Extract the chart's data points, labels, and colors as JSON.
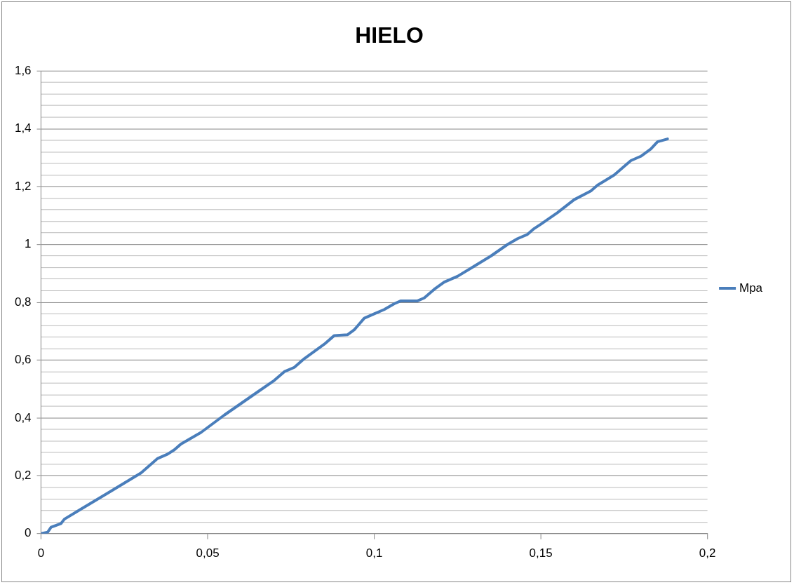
{
  "chart_data": {
    "type": "line",
    "title": "HIELO",
    "x": [
      0,
      0.002,
      0.003,
      0.006,
      0.007,
      0.012,
      0.02,
      0.03,
      0.035,
      0.038,
      0.04,
      0.042,
      0.048,
      0.055,
      0.06,
      0.065,
      0.07,
      0.073,
      0.076,
      0.079,
      0.085,
      0.088,
      0.092,
      0.094,
      0.097,
      0.1,
      0.103,
      0.106,
      0.108,
      0.113,
      0.115,
      0.118,
      0.121,
      0.125,
      0.13,
      0.135,
      0.14,
      0.143,
      0.146,
      0.148,
      0.15,
      0.155,
      0.16,
      0.165,
      0.167,
      0.172,
      0.177,
      0.18,
      0.183,
      0.185,
      0.188
    ],
    "series": [
      {
        "name": "Mpa",
        "color": "#4a7ebb",
        "values": [
          0,
          0.005,
          0.022,
          0.035,
          0.05,
          0.085,
          0.14,
          0.21,
          0.26,
          0.275,
          0.29,
          0.31,
          0.35,
          0.41,
          0.45,
          0.49,
          0.53,
          0.56,
          0.575,
          0.605,
          0.655,
          0.685,
          0.688,
          0.705,
          0.745,
          0.76,
          0.775,
          0.795,
          0.805,
          0.805,
          0.815,
          0.845,
          0.87,
          0.89,
          0.925,
          0.96,
          1.0,
          1.02,
          1.035,
          1.055,
          1.07,
          1.11,
          1.155,
          1.185,
          1.205,
          1.24,
          1.29,
          1.305,
          1.33,
          1.355,
          1.365
        ]
      }
    ],
    "xlim": [
      0,
      0.2
    ],
    "xticks": [
      0,
      {
        "value": 0.05,
        "label": "0,05"
      },
      {
        "value": 0.1,
        "label": "0,1"
      },
      {
        "value": 0.15,
        "label": "0,15"
      },
      {
        "value": 0.2,
        "label": "0,2"
      }
    ],
    "ylim": [
      0,
      1.6
    ],
    "yticks": [
      0,
      {
        "value": 0.04,
        "label": null
      },
      {
        "value": 0.08,
        "label": null
      },
      {
        "value": 0.12,
        "label": null
      },
      {
        "value": 0.16,
        "label": null
      },
      {
        "value": 0.2,
        "label": "0,2"
      },
      {
        "value": 0.24,
        "label": null
      },
      {
        "value": 0.28,
        "label": null
      },
      {
        "value": 0.32,
        "label": null
      },
      {
        "value": 0.36,
        "label": null
      },
      {
        "value": 0.4,
        "label": "0,4"
      },
      {
        "value": 0.44,
        "label": null
      },
      {
        "value": 0.48,
        "label": null
      },
      {
        "value": 0.52,
        "label": null
      },
      {
        "value": 0.56,
        "label": null
      },
      {
        "value": 0.6,
        "label": "0,6"
      },
      {
        "value": 0.64,
        "label": null
      },
      {
        "value": 0.68,
        "label": null
      },
      {
        "value": 0.72,
        "label": null
      },
      {
        "value": 0.76,
        "label": null
      },
      {
        "value": 0.8,
        "label": "0,8"
      },
      {
        "value": 0.84,
        "label": null
      },
      {
        "value": 0.88,
        "label": null
      },
      {
        "value": 0.92,
        "label": null
      },
      {
        "value": 0.96,
        "label": null
      },
      1,
      {
        "value": 1.04,
        "label": null
      },
      {
        "value": 1.08,
        "label": null
      },
      {
        "value": 1.12,
        "label": null
      },
      {
        "value": 1.16,
        "label": null
      },
      {
        "value": 1.2,
        "label": "1,2"
      },
      {
        "value": 1.24,
        "label": null
      },
      {
        "value": 1.28,
        "label": null
      },
      {
        "value": 1.32,
        "label": null
      },
      {
        "value": 1.36,
        "label": null
      },
      {
        "value": 1.4,
        "label": "1,4"
      },
      {
        "value": 1.44,
        "label": null
      },
      {
        "value": 1.48,
        "label": null
      },
      {
        "value": 1.52,
        "label": null
      },
      {
        "value": 1.56,
        "label": null
      },
      {
        "value": 1.6,
        "label": "1,6"
      }
    ],
    "grid": "y",
    "legend": "right",
    "marker": "none",
    "line_style": "solid"
  }
}
